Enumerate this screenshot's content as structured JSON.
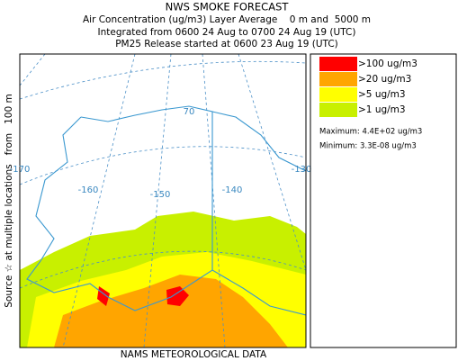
{
  "header": {
    "title": "NWS SMOKE FORECAST",
    "lines": [
      "Air Concentration (ug/m3) Layer Average    0 m and  5000 m",
      "Integrated from 0600 24 Aug to 0700 24 Aug 19 (UTC)",
      "PM25 Release started at 0600 23 Aug 19 (UTC)"
    ]
  },
  "map": {
    "source_note": "Source ☆ at multiple locations   from   100 m",
    "grid_labels": [
      "-170",
      "-160",
      "-150",
      "-140",
      "-130",
      "70"
    ]
  },
  "legend": {
    "items": [
      {
        "label": ">100 ug/m3",
        "color": "#ff0000"
      },
      {
        "label": ">20 ug/m3",
        "color": "#ffa500"
      },
      {
        "label": ">5 ug/m3",
        "color": "#ffff00"
      },
      {
        "label": ">1 ug/m3",
        "color": "#c8f000"
      }
    ],
    "maximum": "Maximum: 4.4E+02 ug/m3",
    "minimum": "Minimum: 3.3E-08 ug/m3"
  },
  "footer": "NAMS METEOROLOGICAL DATA"
}
